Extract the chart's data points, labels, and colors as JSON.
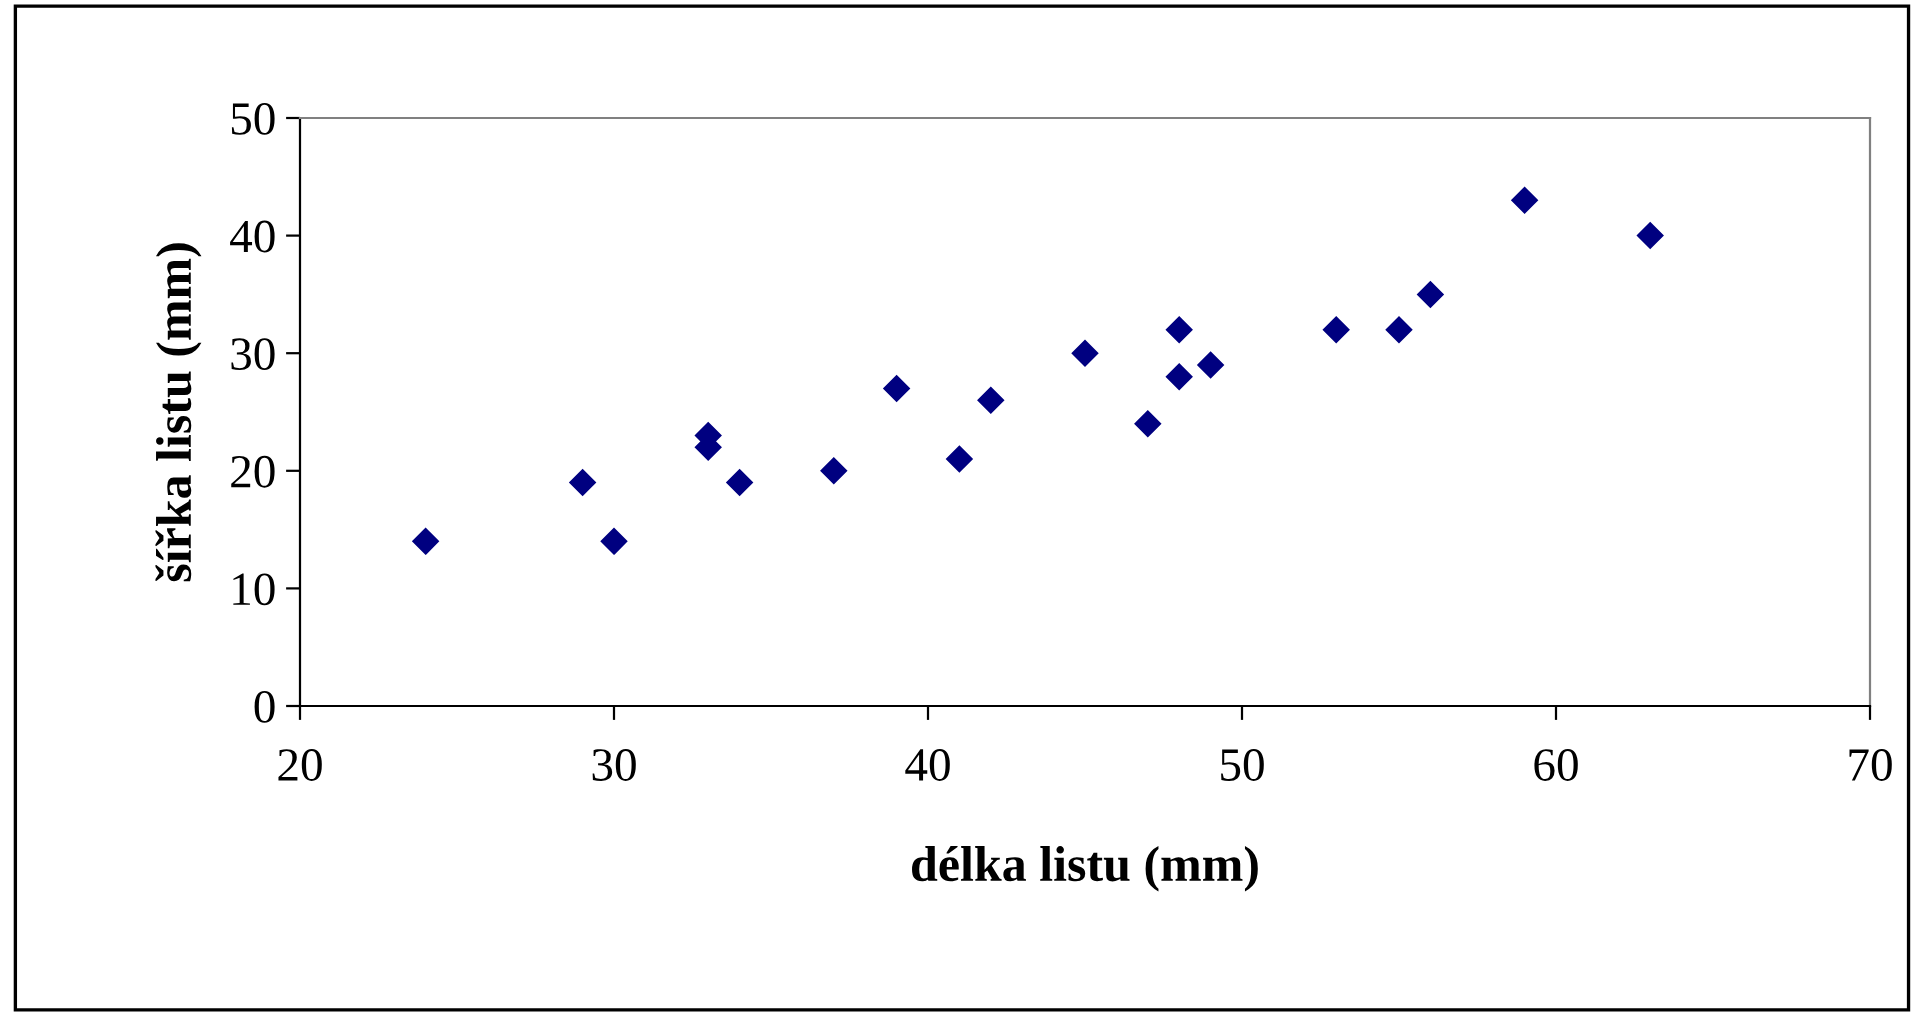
{
  "chart_data": {
    "type": "scatter",
    "xlabel": "délka listu (mm)",
    "ylabel": "šířka listu (mm)",
    "x": [
      24,
      29,
      30,
      33,
      33,
      34,
      37,
      39,
      41,
      42,
      45,
      47,
      48,
      48,
      49,
      53,
      55,
      56,
      59,
      63
    ],
    "values": [
      14,
      19,
      14,
      23,
      22,
      19,
      20,
      27,
      21,
      26,
      30,
      24,
      32,
      28,
      29,
      32,
      32,
      35,
      43,
      40
    ],
    "color": "#000080",
    "marker": "diamond",
    "xlim": [
      20,
      70
    ],
    "xticks": [
      20,
      30,
      40,
      50,
      60,
      70
    ],
    "ylim": [
      0,
      50
    ],
    "yticks": [
      0,
      10,
      20,
      30,
      40,
      50
    ],
    "grid": false,
    "legend": false
  }
}
